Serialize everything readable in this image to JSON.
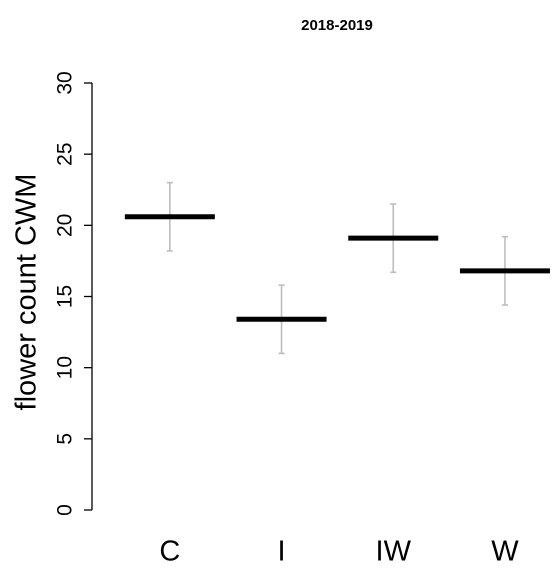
{
  "chart_data": {
    "type": "errorbar",
    "title": "2018-2019",
    "y_label": "flower count CWM",
    "categories": [
      "C",
      "I",
      "IW",
      "W"
    ],
    "values": [
      20.6,
      13.4,
      19.1,
      16.8
    ],
    "errors": [
      2.4,
      2.4,
      2.4,
      2.4
    ],
    "color": "#000000",
    "error_color": "#bdbdbd",
    "ylim": [
      0,
      30
    ],
    "yticks": [
      0,
      5,
      10,
      15,
      20,
      25,
      30
    ]
  }
}
